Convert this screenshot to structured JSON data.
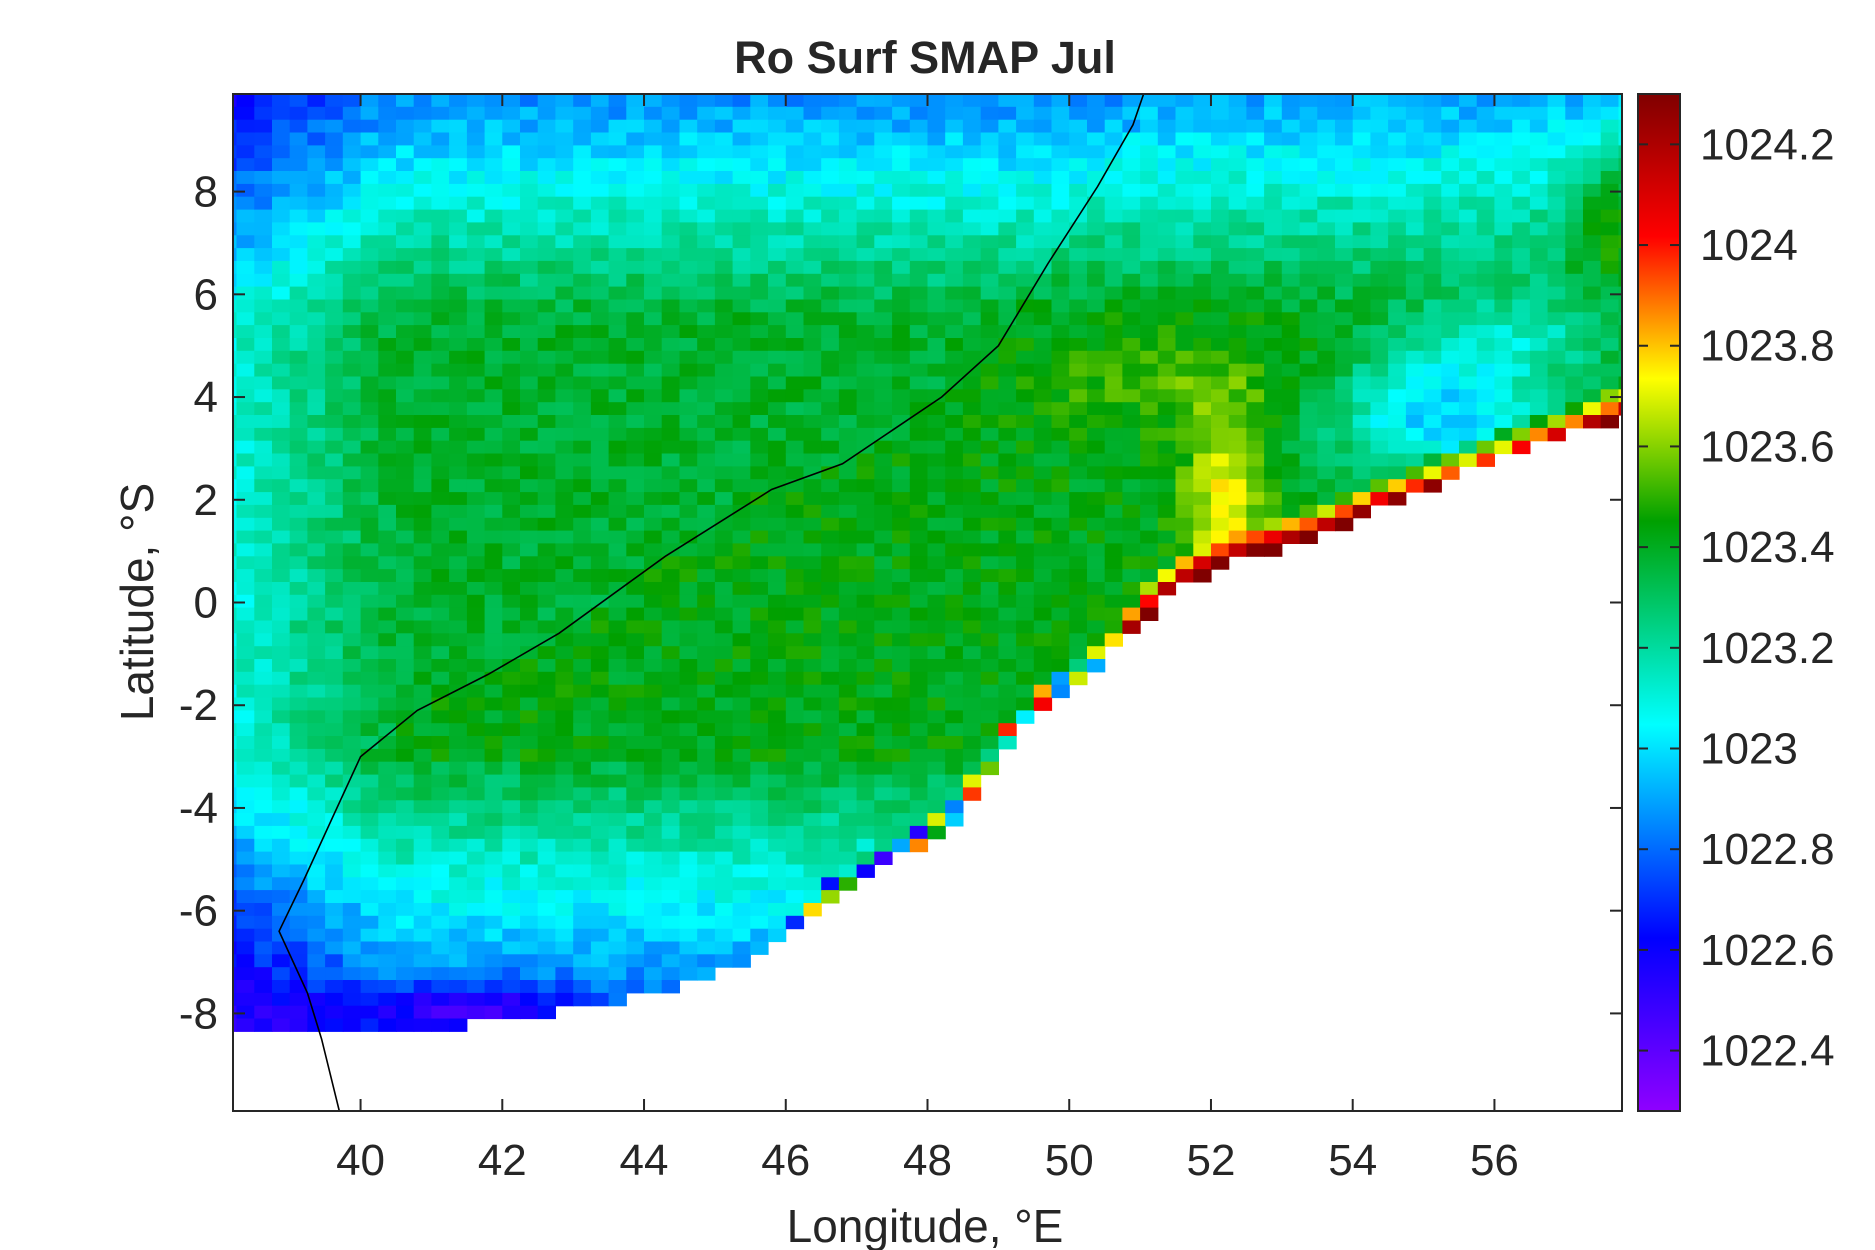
{
  "chart_data": {
    "type": "heatmap",
    "title": "Ro Surf SMAP Jul",
    "xlabel": "Longitude, °E",
    "ylabel": "Latitude, °S",
    "xlim": [
      38.2,
      57.8
    ],
    "ylim": [
      -9.9,
      9.9
    ],
    "x_ticks": [
      40,
      42,
      44,
      46,
      48,
      50,
      52,
      54,
      56
    ],
    "x_tick_labels": [
      "40",
      "42",
      "44",
      "46",
      "48",
      "50",
      "52",
      "54",
      "56"
    ],
    "y_ticks": [
      8,
      6,
      4,
      2,
      0,
      -2,
      -4,
      -6,
      -8
    ],
    "y_tick_labels": [
      "8",
      "6",
      "4",
      "2",
      "0",
      "-2",
      "-4",
      "-6",
      "-8"
    ],
    "colorbar": {
      "colormap": "jet-like (violet to dark red)",
      "clim": [
        1022.28,
        1024.3
      ],
      "ticks": [
        1024.2,
        1024.0,
        1023.8,
        1023.6,
        1023.4,
        1023.2,
        1023.0,
        1022.8,
        1022.6,
        1022.4
      ],
      "tick_labels": [
        "1024.2",
        "1024",
        "1023.8",
        "1023.6",
        "1023.4",
        "1023.2",
        "1023",
        "1022.8",
        "1022.6",
        "1022.4"
      ]
    },
    "grid": false,
    "data_summary": {
      "grid_resolution_deg": 0.25,
      "coastline": "black line from about (39.7E, -9.5) to (51.0E, 9.9)",
      "no_data_region": "south-east of a line from (40.0E,-8.3) through (44.5E,-7.5),(47.0E,-5.5),(49.5E,-2.2),(51.5E,0.3),(53.5E,1.3),(57.8E,3.6)",
      "typical_open_ocean": 1023.4,
      "north_band": 1022.9,
      "south_band": 1022.7,
      "upwelling_edge_max": 1024.3,
      "somali_jet_plume": "1023.7 near 52.2E, 2N"
    }
  },
  "colors": {
    "colormap_stops": [
      "#8f00ff",
      "#0000ff",
      "#00ffff",
      "#00a000",
      "#ffff00",
      "#ff0000",
      "#800000"
    ],
    "land": "#ffffff",
    "coastline": "#000000",
    "axis": "#262626"
  }
}
